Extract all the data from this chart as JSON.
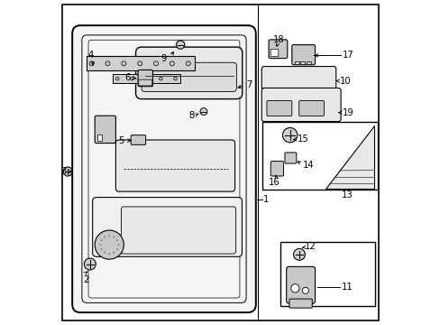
{
  "bg_color": "#ffffff",
  "line_color": "#000000",
  "figsize": [
    4.89,
    3.6
  ],
  "dpi": 100,
  "gray1": "#d0d0d0",
  "gray2": "#e8e8e8",
  "gray3": "#c8c8c8",
  "gray4": "#b0b0b0"
}
